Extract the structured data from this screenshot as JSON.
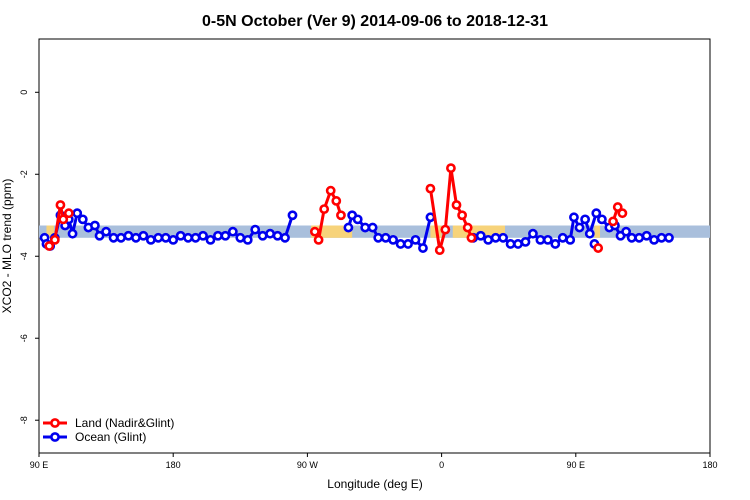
{
  "chart_data": {
    "type": "line",
    "title": "0-5N October (Ver 9)   2014-09-06 to 2018-12-31",
    "xlabel": "Longitude (deg E)",
    "ylabel": "XCO2 - MLO trend (ppm)",
    "xlim": [
      90,
      450
    ],
    "ylim": [
      -8.8,
      1.3
    ],
    "x_ticks": [
      {
        "value": 90,
        "label": "90 E"
      },
      {
        "value": 162,
        "label": "180"
      },
      {
        "value": 234,
        "label": "90 W"
      },
      {
        "value": 306,
        "label": "0"
      },
      {
        "value": 378,
        "label": "90 E"
      },
      {
        "value": 450,
        "label": "180"
      }
    ],
    "y_ticks": [
      {
        "value": 0,
        "label": "0"
      },
      {
        "value": -2,
        "label": "-2"
      },
      {
        "value": -4,
        "label": "-4"
      },
      {
        "value": -6,
        "label": "-6"
      },
      {
        "value": -8,
        "label": "-8"
      }
    ],
    "band": {
      "y_low": -3.55,
      "y_high": -3.25,
      "color": "#a9bfdc",
      "highlight_color": "#f7d37a",
      "highlight_ranges": [
        [
          94,
          98
        ],
        [
          236,
          258
        ],
        [
          300,
          306
        ],
        [
          312,
          340
        ],
        [
          388,
          391
        ]
      ]
    },
    "legend_position": "bottom-left",
    "series": [
      {
        "name": "Land (Nadir&Glint)",
        "color": "#ff0000",
        "segments": [
          [
            [
              95.5,
              -3.75
            ],
            [
              98.5,
              -3.6
            ],
            [
              101.5,
              -2.75
            ],
            [
              103,
              -3.1
            ],
            [
              106,
              -2.95
            ]
          ],
          [
            [
              238,
              -3.4
            ],
            [
              240,
              -3.6
            ],
            [
              243,
              -2.85
            ],
            [
              246.5,
              -2.4
            ],
            [
              249.5,
              -2.65
            ],
            [
              252,
              -3.0
            ]
          ],
          [
            [
              300,
              -2.35
            ],
            [
              305,
              -3.85
            ],
            [
              308,
              -3.35
            ],
            [
              311,
              -1.85
            ],
            [
              314,
              -2.75
            ],
            [
              317,
              -3.0
            ],
            [
              320,
              -3.3
            ],
            [
              322,
              -3.55
            ]
          ],
          [
            [
              390,
              -3.8
            ]
          ],
          [
            [
              398,
              -3.15
            ],
            [
              400.5,
              -2.8
            ],
            [
              403,
              -2.95
            ]
          ]
        ]
      },
      {
        "name": "Ocean (Glint)",
        "color": "#0000ee",
        "segments": [
          [
            [
              93,
              -3.55
            ],
            [
              94,
              -3.7
            ],
            [
              96,
              -3.75
            ],
            [
              98.5,
              -3.55
            ],
            [
              101.5,
              -3.0
            ],
            [
              104,
              -3.25
            ],
            [
              106,
              -3.1
            ],
            [
              108,
              -3.45
            ],
            [
              110.5,
              -2.95
            ],
            [
              113.5,
              -3.1
            ],
            [
              116.5,
              -3.3
            ],
            [
              120,
              -3.25
            ],
            [
              122.5,
              -3.5
            ],
            [
              126,
              -3.4
            ],
            [
              130,
              -3.55
            ],
            [
              134,
              -3.55
            ],
            [
              138,
              -3.5
            ],
            [
              142,
              -3.55
            ],
            [
              146,
              -3.5
            ],
            [
              150,
              -3.6
            ],
            [
              154,
              -3.55
            ],
            [
              158,
              -3.55
            ],
            [
              162,
              -3.6
            ],
            [
              166,
              -3.5
            ],
            [
              170,
              -3.55
            ],
            [
              174,
              -3.55
            ],
            [
              178,
              -3.5
            ],
            [
              182,
              -3.6
            ],
            [
              186,
              -3.5
            ],
            [
              190,
              -3.5
            ],
            [
              194,
              -3.4
            ],
            [
              198,
              -3.55
            ],
            [
              202,
              -3.6
            ],
            [
              206,
              -3.35
            ],
            [
              210,
              -3.5
            ],
            [
              214,
              -3.45
            ],
            [
              218,
              -3.5
            ],
            [
              222,
              -3.55
            ],
            [
              226,
              -3.0
            ]
          ],
          [
            [
              256,
              -3.3
            ],
            [
              258,
              -3.0
            ],
            [
              261,
              -3.1
            ],
            [
              265,
              -3.3
            ],
            [
              269,
              -3.3
            ],
            [
              272,
              -3.55
            ],
            [
              276,
              -3.55
            ],
            [
              280,
              -3.6
            ],
            [
              284,
              -3.7
            ],
            [
              288,
              -3.7
            ],
            [
              292,
              -3.6
            ],
            [
              296,
              -3.8
            ],
            [
              300,
              -3.05
            ]
          ],
          [
            [
              323,
              -3.55
            ],
            [
              327,
              -3.5
            ],
            [
              331,
              -3.6
            ],
            [
              335,
              -3.55
            ],
            [
              339,
              -3.55
            ],
            [
              343,
              -3.7
            ],
            [
              347,
              -3.7
            ],
            [
              351,
              -3.65
            ],
            [
              355,
              -3.45
            ],
            [
              359,
              -3.6
            ],
            [
              363,
              -3.6
            ],
            [
              367,
              -3.7
            ],
            [
              371,
              -3.55
            ],
            [
              375,
              -3.6
            ],
            [
              377,
              -3.05
            ],
            [
              380,
              -3.3
            ],
            [
              383,
              -3.1
            ],
            [
              385.5,
              -3.45
            ],
            [
              389,
              -2.95
            ],
            [
              392,
              -3.1
            ],
            [
              396,
              -3.3
            ],
            [
              399,
              -3.25
            ],
            [
              402,
              -3.5
            ],
            [
              405,
              -3.4
            ],
            [
              408,
              -3.55
            ],
            [
              412,
              -3.55
            ],
            [
              416,
              -3.5
            ],
            [
              420,
              -3.6
            ],
            [
              424,
              -3.55
            ],
            [
              428,
              -3.55
            ]
          ],
          [
            [
              388,
              -3.7
            ]
          ]
        ]
      }
    ]
  }
}
